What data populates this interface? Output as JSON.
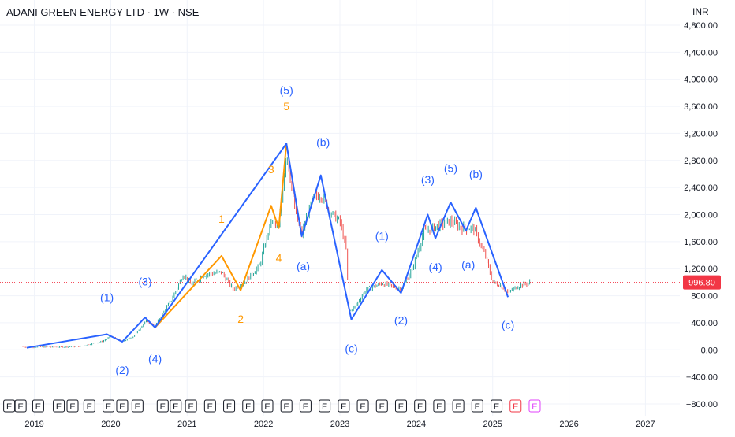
{
  "chart_data": {
    "type": "line",
    "title": "ADANI GREEN ENERGY LTD · 1W · NSE",
    "currency": "INR",
    "current_price": "996.80",
    "x_range": [
      2018.55,
      2027.45
    ],
    "y_range": [
      -880,
      5000
    ],
    "y_ticks": [
      "4,800.00",
      "4,400.00",
      "4,000.00",
      "3,600.00",
      "3,200.00",
      "2,800.00",
      "2,400.00",
      "2,000.00",
      "1,600.00",
      "1,200.00",
      "800.00",
      "400.00",
      "0.00",
      "−400.00",
      "−800.00"
    ],
    "x_ticks": [
      "2019",
      "2020",
      "2021",
      "2022",
      "2023",
      "2024",
      "2025",
      "2026",
      "2027"
    ],
    "grid": true,
    "colors": {
      "up": "#26a69a",
      "down": "#ef5350",
      "wave_primary": "#2962ff",
      "wave_secondary": "#ff9800",
      "price_line": "#f23645"
    },
    "wave_primary_points": [
      {
        "x": 2018.9,
        "y": 30
      },
      {
        "x": 2019.95,
        "y": 230
      },
      {
        "x": 2020.15,
        "y": 120
      },
      {
        "x": 2020.45,
        "y": 480
      },
      {
        "x": 2020.58,
        "y": 330
      },
      {
        "x": 2022.3,
        "y": 3050
      },
      {
        "x": 2022.5,
        "y": 1680
      },
      {
        "x": 2022.75,
        "y": 2580
      },
      {
        "x": 2023.15,
        "y": 450
      },
      {
        "x": 2023.55,
        "y": 1180
      },
      {
        "x": 2023.8,
        "y": 840
      },
      {
        "x": 2024.15,
        "y": 2000
      },
      {
        "x": 2024.25,
        "y": 1650
      },
      {
        "x": 2024.45,
        "y": 2180
      },
      {
        "x": 2024.65,
        "y": 1760
      },
      {
        "x": 2024.78,
        "y": 2100
      },
      {
        "x": 2025.2,
        "y": 780
      }
    ],
    "wave_secondary_points": [
      {
        "x": 2020.58,
        "y": 330
      },
      {
        "x": 2021.45,
        "y": 1390
      },
      {
        "x": 2021.7,
        "y": 880
      },
      {
        "x": 2022.1,
        "y": 2130
      },
      {
        "x": 2022.2,
        "y": 1800
      },
      {
        "x": 2022.3,
        "y": 3050
      }
    ],
    "labels_primary": [
      {
        "text": "(1)",
        "x": 2019.95,
        "y": 720
      },
      {
        "text": "(2)",
        "x": 2020.15,
        "y": -360
      },
      {
        "text": "(3)",
        "x": 2020.45,
        "y": 950
      },
      {
        "text": "(4)",
        "x": 2020.58,
        "y": -190
      },
      {
        "text": "(5)",
        "x": 2022.3,
        "y": 3780
      },
      {
        "text": "(a)",
        "x": 2022.52,
        "y": 1180
      },
      {
        "text": "(b)",
        "x": 2022.78,
        "y": 3010
      },
      {
        "text": "(c)",
        "x": 2023.15,
        "y": -40
      },
      {
        "text": "(1)",
        "x": 2023.55,
        "y": 1630
      },
      {
        "text": "(2)",
        "x": 2023.8,
        "y": 380
      },
      {
        "text": "(3)",
        "x": 2024.15,
        "y": 2460
      },
      {
        "text": "(4)",
        "x": 2024.25,
        "y": 1170
      },
      {
        "text": "(5)",
        "x": 2024.45,
        "y": 2630
      },
      {
        "text": "(b)",
        "x": 2024.78,
        "y": 2540
      },
      {
        "text": "(a)",
        "x": 2024.68,
        "y": 1200
      },
      {
        "text": "(c)",
        "x": 2025.2,
        "y": 310
      }
    ],
    "labels_secondary": [
      {
        "text": "5",
        "x": 2022.3,
        "y": 3540
      },
      {
        "text": "3",
        "x": 2022.1,
        "y": 2610
      },
      {
        "text": "1",
        "x": 2021.45,
        "y": 1880
      },
      {
        "text": "4",
        "x": 2022.2,
        "y": 1300
      },
      {
        "text": "2",
        "x": 2021.7,
        "y": 400
      }
    ],
    "price_anchors": [
      [
        2018.85,
        40
      ],
      [
        2019.3,
        40
      ],
      [
        2019.6,
        50
      ],
      [
        2019.9,
        130
      ],
      [
        2020.0,
        200
      ],
      [
        2020.15,
        120
      ],
      [
        2020.3,
        200
      ],
      [
        2020.45,
        420
      ],
      [
        2020.58,
        360
      ],
      [
        2020.8,
        750
      ],
      [
        2020.95,
        1120
      ],
      [
        2021.05,
        960
      ],
      [
        2021.2,
        1100
      ],
      [
        2021.45,
        1150
      ],
      [
        2021.6,
        900
      ],
      [
        2021.75,
        1000
      ],
      [
        2021.95,
        1250
      ],
      [
        2022.1,
        1900
      ],
      [
        2022.2,
        1800
      ],
      [
        2022.3,
        2950
      ],
      [
        2022.42,
        2000
      ],
      [
        2022.5,
        1700
      ],
      [
        2022.65,
        2250
      ],
      [
        2022.75,
        2300
      ],
      [
        2022.9,
        2000
      ],
      [
        2023.0,
        1900
      ],
      [
        2023.08,
        1500
      ],
      [
        2023.12,
        560
      ],
      [
        2023.2,
        650
      ],
      [
        2023.35,
        900
      ],
      [
        2023.55,
        980
      ],
      [
        2023.8,
        900
      ],
      [
        2023.95,
        1200
      ],
      [
        2024.1,
        1750
      ],
      [
        2024.3,
        1850
      ],
      [
        2024.45,
        1900
      ],
      [
        2024.6,
        1800
      ],
      [
        2024.75,
        1800
      ],
      [
        2024.9,
        1400
      ],
      [
        2025.0,
        1000
      ],
      [
        2025.1,
        950
      ],
      [
        2025.2,
        850
      ],
      [
        2025.35,
        950
      ],
      [
        2025.5,
        1000
      ]
    ],
    "earnings_markers": [
      {
        "x": 2018.67,
        "label": "E",
        "color": "#131722"
      },
      {
        "x": 2018.82,
        "label": "E",
        "color": "#131722"
      },
      {
        "x": 2019.05,
        "label": "E",
        "color": "#131722"
      },
      {
        "x": 2019.32,
        "label": "E",
        "color": "#131722"
      },
      {
        "x": 2019.5,
        "label": "E",
        "color": "#131722"
      },
      {
        "x": 2019.72,
        "label": "E",
        "color": "#131722"
      },
      {
        "x": 2019.97,
        "label": "E",
        "color": "#131722"
      },
      {
        "x": 2020.15,
        "label": "E",
        "color": "#131722"
      },
      {
        "x": 2020.35,
        "label": "E",
        "color": "#131722"
      },
      {
        "x": 2020.68,
        "label": "E",
        "color": "#131722"
      },
      {
        "x": 2020.85,
        "label": "E",
        "color": "#131722"
      },
      {
        "x": 2021.05,
        "label": "E",
        "color": "#131722"
      },
      {
        "x": 2021.3,
        "label": "E",
        "color": "#131722"
      },
      {
        "x": 2021.55,
        "label": "E",
        "color": "#131722"
      },
      {
        "x": 2021.8,
        "label": "E",
        "color": "#131722"
      },
      {
        "x": 2022.05,
        "label": "E",
        "color": "#131722"
      },
      {
        "x": 2022.3,
        "label": "E",
        "color": "#131722"
      },
      {
        "x": 2022.55,
        "label": "E",
        "color": "#131722"
      },
      {
        "x": 2022.8,
        "label": "E",
        "color": "#131722"
      },
      {
        "x": 2023.05,
        "label": "E",
        "color": "#131722"
      },
      {
        "x": 2023.3,
        "label": "E",
        "color": "#131722"
      },
      {
        "x": 2023.55,
        "label": "E",
        "color": "#131722"
      },
      {
        "x": 2023.8,
        "label": "E",
        "color": "#131722"
      },
      {
        "x": 2024.05,
        "label": "E",
        "color": "#131722"
      },
      {
        "x": 2024.3,
        "label": "E",
        "color": "#131722"
      },
      {
        "x": 2024.55,
        "label": "E",
        "color": "#131722"
      },
      {
        "x": 2024.8,
        "label": "E",
        "color": "#131722"
      },
      {
        "x": 2025.05,
        "label": "E",
        "color": "#131722"
      },
      {
        "x": 2025.3,
        "label": "E",
        "color": "#f23645"
      },
      {
        "x": 2025.55,
        "label": "E",
        "color": "#e040fb"
      }
    ]
  }
}
